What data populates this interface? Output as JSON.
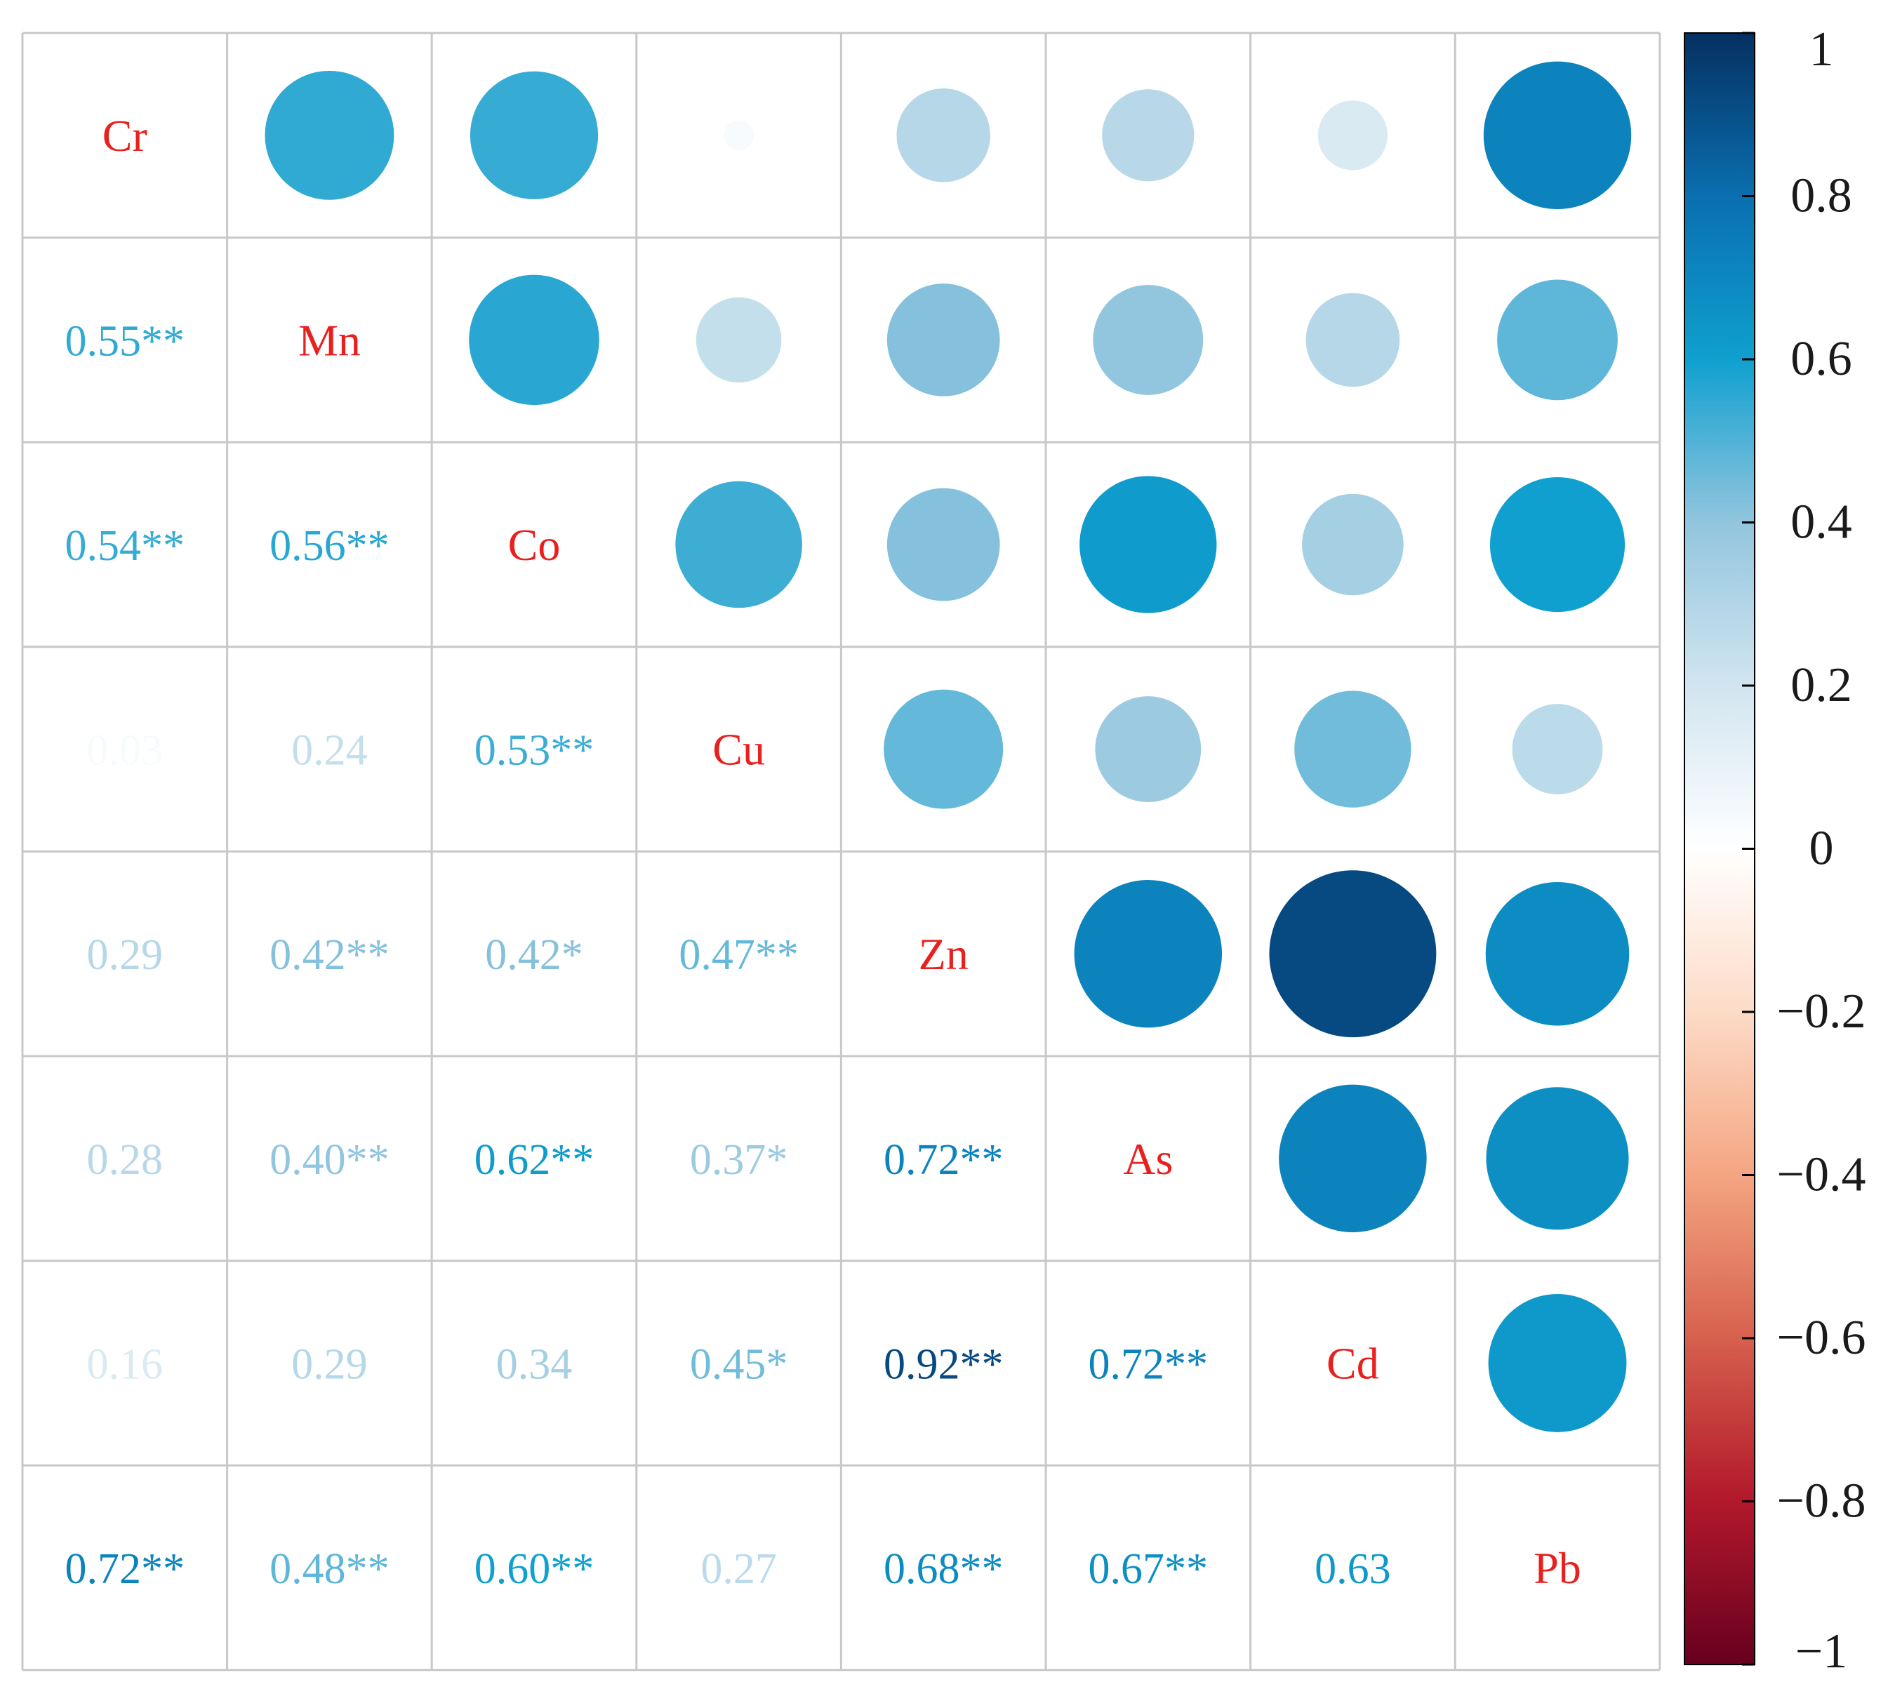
{
  "chart_data": {
    "type": "heatmap",
    "variables": [
      "Cr",
      "Mn",
      "Co",
      "Cu",
      "Zn",
      "As",
      "Cd",
      "Pb"
    ],
    "lower_triangle_labels": [
      [
        "",
        "",
        "",
        "",
        "",
        "",
        "",
        ""
      ],
      [
        "0.55**",
        "",
        "",
        "",
        "",
        "",
        "",
        ""
      ],
      [
        "0.54**",
        "0.56**",
        "",
        "",
        "",
        "",
        "",
        ""
      ],
      [
        "0.03",
        "0.24",
        "0.53**",
        "",
        "",
        "",
        "",
        ""
      ],
      [
        "0.29",
        "0.42**",
        "0.42*",
        "0.47**",
        "",
        "",
        "",
        ""
      ],
      [
        "0.28",
        "0.40**",
        "0.62**",
        "0.37*",
        "0.72**",
        "",
        "",
        ""
      ],
      [
        "0.16",
        "0.29",
        "0.34",
        "0.45*",
        "0.92**",
        "0.72**",
        "",
        ""
      ],
      [
        "0.72**",
        "0.48**",
        "0.60**",
        "0.27",
        "0.68**",
        "0.67**",
        "0.63",
        ""
      ]
    ],
    "matrix": [
      [
        1,
        0.55,
        0.54,
        0.03,
        0.29,
        0.28,
        0.16,
        0.72
      ],
      [
        0.55,
        1,
        0.56,
        0.24,
        0.42,
        0.4,
        0.29,
        0.48
      ],
      [
        0.54,
        0.56,
        1,
        0.53,
        0.42,
        0.62,
        0.34,
        0.6
      ],
      [
        0.03,
        0.24,
        0.53,
        1,
        0.47,
        0.37,
        0.45,
        0.27
      ],
      [
        0.29,
        0.42,
        0.42,
        0.47,
        1,
        0.72,
        0.92,
        0.68
      ],
      [
        0.28,
        0.4,
        0.62,
        0.37,
        0.72,
        1,
        0.72,
        0.67
      ],
      [
        0.16,
        0.29,
        0.34,
        0.45,
        0.92,
        0.72,
        1,
        0.63
      ],
      [
        0.72,
        0.48,
        0.6,
        0.27,
        0.68,
        0.67,
        0.63,
        1
      ]
    ],
    "colorbar": {
      "range": [
        -1,
        1
      ],
      "tick_labels": [
        "1",
        "0.8",
        "0.6",
        "0.4",
        "0.2",
        "0",
        "−0.2",
        "−0.4",
        "−0.6",
        "−0.8",
        "−1"
      ],
      "tick_values": [
        1,
        0.8,
        0.6,
        0.4,
        0.2,
        0,
        -0.2,
        -0.4,
        -0.6,
        -0.8,
        -1
      ]
    },
    "colors": {
      "diagonal_label": "#e8201e",
      "grid_line": "#c8c8c8",
      "colormap_stops": [
        {
          "v": -1.0,
          "c": "#67001f"
        },
        {
          "v": -0.8,
          "c": "#b2182b"
        },
        {
          "v": -0.6,
          "c": "#d6604d"
        },
        {
          "v": -0.4,
          "c": "#f4a582"
        },
        {
          "v": -0.2,
          "c": "#fddbc7"
        },
        {
          "v": 0.0,
          "c": "#ffffff"
        },
        {
          "v": 0.2,
          "c": "#d1e5f0"
        },
        {
          "v": 0.4,
          "c": "#92c5de"
        },
        {
          "v": 0.6,
          "c": "#0fa0cf"
        },
        {
          "v": 0.8,
          "c": "#0a6fb0"
        },
        {
          "v": 1.0,
          "c": "#053061"
        }
      ]
    }
  }
}
